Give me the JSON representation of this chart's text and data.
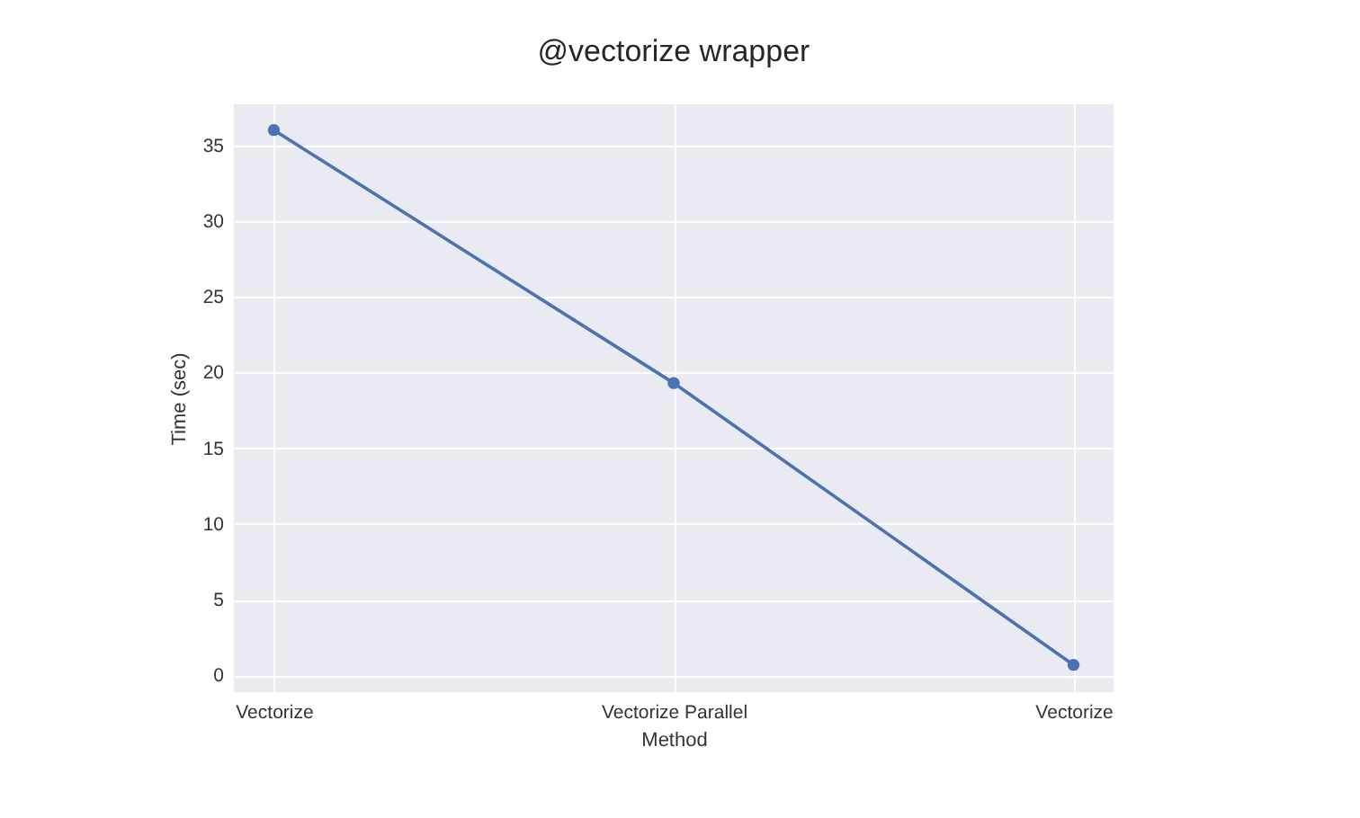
{
  "chart_data": {
    "type": "line",
    "title": "@vectorize wrapper",
    "xlabel": "Method",
    "ylabel": "Time (sec)",
    "categories": [
      "Vectorize",
      "Vectorize Parallel",
      "Vectorize"
    ],
    "series": [
      {
        "color": "#4c72b0",
        "values": [
          36.0,
          19.3,
          0.7
        ]
      }
    ],
    "ylim": [
      -1.1,
      37.7
    ],
    "yticks": [
      0,
      5,
      10,
      15,
      20,
      25,
      30,
      35
    ],
    "grid": true,
    "marker": "circle",
    "line_style": "solid"
  }
}
